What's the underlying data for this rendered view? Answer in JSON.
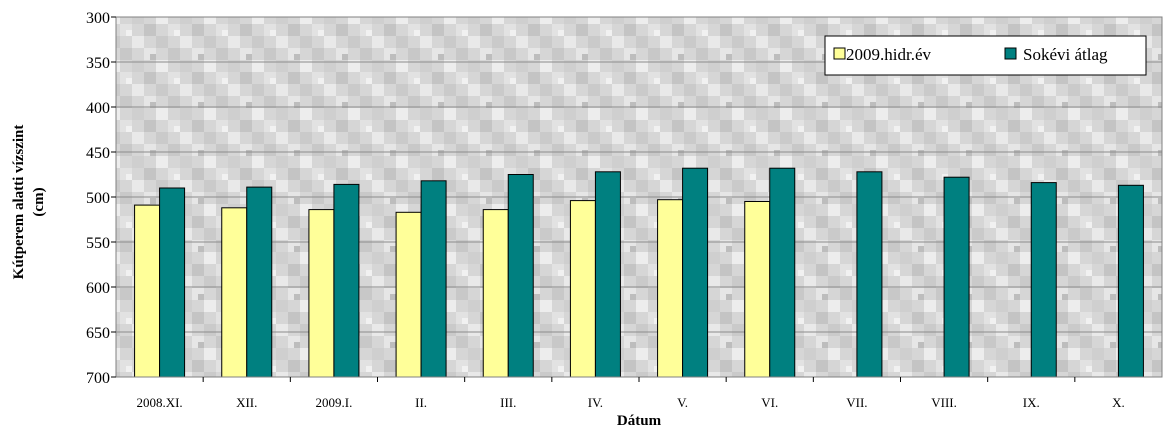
{
  "chart_data": {
    "type": "bar",
    "categories": [
      "2008.XI.",
      "XII.",
      "2009.I.",
      "II.",
      "III.",
      "IV.",
      "V.",
      "VI.",
      "VII.",
      "VIII.",
      "IX.",
      "X."
    ],
    "series": [
      {
        "name": "2009.hidr.év",
        "color": "#ffff99",
        "values": [
          509,
          512,
          514,
          517,
          514,
          504,
          503,
          505,
          null,
          null,
          null,
          null
        ]
      },
      {
        "name": "Sokévi átlag",
        "color": "#008080",
        "values": [
          490,
          489,
          486,
          482,
          475,
          472,
          468,
          468,
          472,
          478,
          484,
          487
        ]
      }
    ],
    "xlabel": "Dátum",
    "ylabel_lines": [
      "Kútperem alatti vízszint",
      "(cm)"
    ],
    "ylim": [
      300,
      700
    ],
    "y_inverted": true,
    "yticks": [
      300,
      350,
      400,
      450,
      500,
      550,
      600,
      650,
      700
    ],
    "grid": true,
    "legend_position": "top-right",
    "background": "gray granite texture"
  }
}
